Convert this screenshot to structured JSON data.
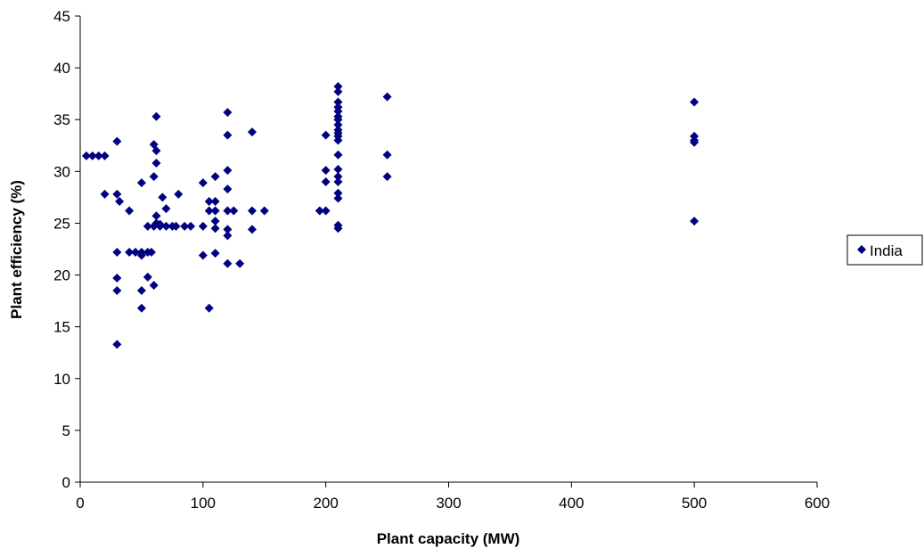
{
  "chart_data": {
    "type": "scatter",
    "xlabel": "Plant capacity (MW)",
    "ylabel": "Plant efficiency (%)",
    "xlim": [
      0,
      600
    ],
    "ylim": [
      0,
      45
    ],
    "x_ticks": [
      "0",
      "100",
      "200",
      "300",
      "400",
      "500",
      "600"
    ],
    "y_ticks": [
      "0",
      "5",
      "10",
      "15",
      "20",
      "25",
      "30",
      "35",
      "40",
      "45"
    ],
    "grid": false,
    "legend_position": "right",
    "marker_color": "#000080",
    "series": [
      {
        "name": "India",
        "points": [
          [
            5,
            31.5
          ],
          [
            10,
            31.5
          ],
          [
            15,
            31.5
          ],
          [
            20,
            31.5
          ],
          [
            20,
            27.8
          ],
          [
            30,
            32.9
          ],
          [
            30,
            27.8
          ],
          [
            32,
            27.1
          ],
          [
            30,
            22.2
          ],
          [
            30,
            19.7
          ],
          [
            30,
            18.5
          ],
          [
            30,
            13.3
          ],
          [
            40,
            26.2
          ],
          [
            40,
            22.2
          ],
          [
            45,
            22.2
          ],
          [
            50,
            22.2
          ],
          [
            50,
            21.9
          ],
          [
            50,
            28.9
          ],
          [
            50,
            18.5
          ],
          [
            50,
            16.8
          ],
          [
            55,
            22.2
          ],
          [
            55,
            24.7
          ],
          [
            55,
            19.8
          ],
          [
            58,
            22.2
          ],
          [
            60,
            24.7
          ],
          [
            60,
            29.5
          ],
          [
            60,
            32.6
          ],
          [
            60,
            19.0
          ],
          [
            62,
            35.3
          ],
          [
            62,
            32.0
          ],
          [
            62,
            30.8
          ],
          [
            62,
            25.7
          ],
          [
            62,
            25.0
          ],
          [
            65,
            24.7
          ],
          [
            65,
            24.9
          ],
          [
            67,
            27.5
          ],
          [
            70,
            24.7
          ],
          [
            70,
            26.4
          ],
          [
            75,
            24.7
          ],
          [
            78,
            24.7
          ],
          [
            80,
            27.8
          ],
          [
            85,
            24.7
          ],
          [
            90,
            24.7
          ],
          [
            100,
            24.7
          ],
          [
            100,
            28.9
          ],
          [
            100,
            21.9
          ],
          [
            105,
            26.2
          ],
          [
            105,
            27.1
          ],
          [
            105,
            16.8
          ],
          [
            110,
            29.5
          ],
          [
            110,
            26.2
          ],
          [
            110,
            27.1
          ],
          [
            110,
            25.2
          ],
          [
            110,
            24.5
          ],
          [
            110,
            22.1
          ],
          [
            120,
            35.7
          ],
          [
            120,
            33.5
          ],
          [
            120,
            30.1
          ],
          [
            120,
            28.3
          ],
          [
            120,
            26.2
          ],
          [
            120,
            24.4
          ],
          [
            120,
            23.8
          ],
          [
            120,
            21.1
          ],
          [
            125,
            26.2
          ],
          [
            130,
            21.1
          ],
          [
            140,
            33.8
          ],
          [
            140,
            26.2
          ],
          [
            140,
            24.4
          ],
          [
            150,
            26.2
          ],
          [
            195,
            26.2
          ],
          [
            200,
            26.2
          ],
          [
            200,
            33.5
          ],
          [
            200,
            30.1
          ],
          [
            200,
            29.0
          ],
          [
            210,
            38.2
          ],
          [
            210,
            37.7
          ],
          [
            210,
            36.7
          ],
          [
            210,
            36.2
          ],
          [
            210,
            35.8
          ],
          [
            210,
            35.3
          ],
          [
            210,
            35.0
          ],
          [
            210,
            34.5
          ],
          [
            210,
            34.0
          ],
          [
            210,
            33.7
          ],
          [
            210,
            33.4
          ],
          [
            210,
            33.0
          ],
          [
            210,
            31.6
          ],
          [
            210,
            30.2
          ],
          [
            210,
            29.5
          ],
          [
            210,
            29.0
          ],
          [
            210,
            27.9
          ],
          [
            210,
            27.4
          ],
          [
            210,
            24.8
          ],
          [
            210,
            24.5
          ],
          [
            250,
            37.2
          ],
          [
            250,
            31.6
          ],
          [
            250,
            29.5
          ],
          [
            500,
            36.7
          ],
          [
            500,
            33.4
          ],
          [
            500,
            33.0
          ],
          [
            500,
            32.8
          ],
          [
            500,
            25.2
          ]
        ]
      }
    ]
  }
}
